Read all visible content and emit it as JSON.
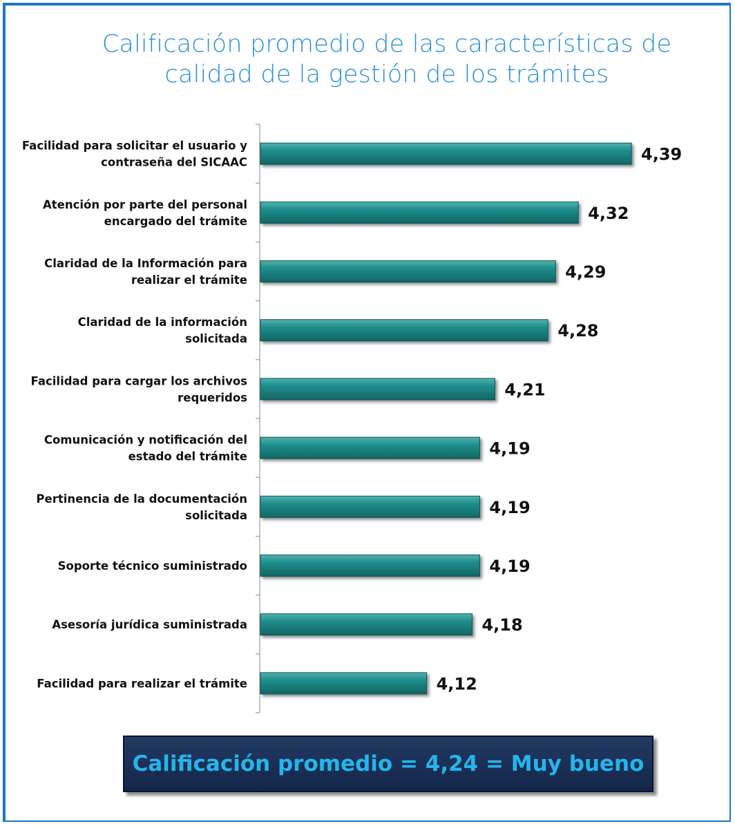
{
  "title_line1": "Calificación promedio de las características de",
  "title_line2": "calidad de la gestión de los trámites",
  "summary": "Calificación promedio = 4,24 = Muy bueno",
  "colors": {
    "bar": "#1b8583",
    "title": "#2a8fd8",
    "frame": "#1d78c9",
    "summary_bg": "#1a2f58",
    "summary_text": "#25b5ea"
  },
  "chart_data": {
    "type": "bar",
    "orientation": "horizontal",
    "title": "Calificación promedio de las características de calidad de la gestión de los trámites",
    "categories": [
      [
        "Facilidad para solicitar el usuario y",
        "contraseña del SICAAC"
      ],
      [
        "Atención por parte del personal",
        "encargado del trámite"
      ],
      [
        "Claridad de la Información para",
        "realizar el trámite"
      ],
      [
        "Claridad de la información",
        "solicitada"
      ],
      [
        "Facilidad para cargar los archivos",
        "requeridos"
      ],
      [
        "Comunicación y notificación del",
        "estado del trámite"
      ],
      [
        "Pertinencia de la documentación",
        "solicitada"
      ],
      [
        "Soporte técnico suministrado"
      ],
      [
        "Asesoría jurídica suministrada"
      ],
      [
        "Facilidad para realizar el trámite"
      ]
    ],
    "values": [
      4.39,
      4.32,
      4.29,
      4.28,
      4.21,
      4.19,
      4.19,
      4.19,
      4.18,
      4.12
    ],
    "value_labels": [
      "4,39",
      "4,32",
      "4,29",
      "4,28",
      "4,21",
      "4,19",
      "4,19",
      "4,19",
      "4,18",
      "4,12"
    ],
    "xlim": [
      3.9,
      4.41
    ]
  }
}
